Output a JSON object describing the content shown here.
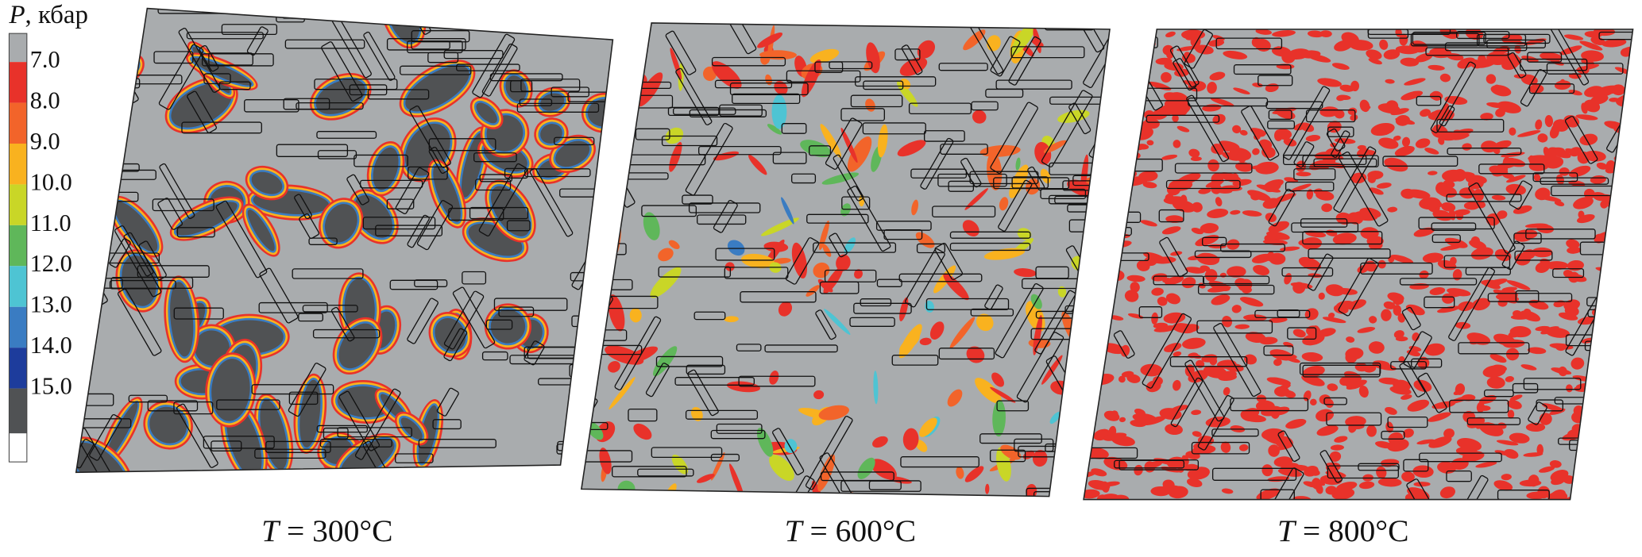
{
  "legend": {
    "title_symbol": "P",
    "title_unit": ", кбар",
    "ticks": [
      "7.0",
      "8.0",
      "9.0",
      "10.0",
      "11.0",
      "12.0",
      "13.0",
      "14.0",
      "15.0"
    ]
  },
  "panels": [
    {
      "variable": "T",
      "caption": " = 300°C"
    },
    {
      "variable": "T",
      "caption": " = 600°C"
    },
    {
      "variable": "T",
      "caption": " = 800°C"
    }
  ]
}
